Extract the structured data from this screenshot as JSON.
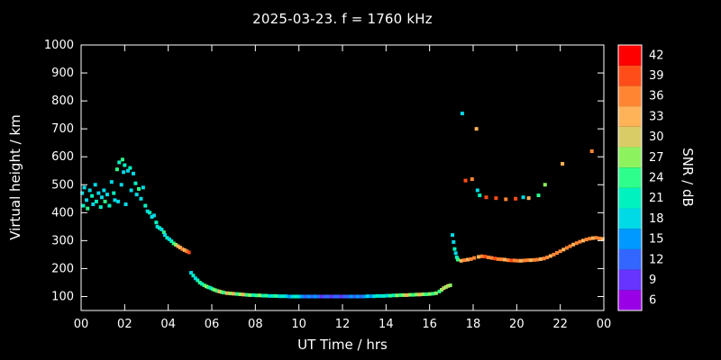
{
  "colors": {
    "background": "#000000",
    "frame": "#ffffff",
    "text": "#ffffff"
  },
  "chart_data": {
    "type": "scatter",
    "title": "2025-03-23. f = 1760 kHz",
    "xlabel": "UT Time / hrs",
    "ylabel": "Virtual height / km",
    "colorbar_label": "SNR / dB",
    "xlim": [
      0,
      24
    ],
    "ylim": [
      50,
      1000
    ],
    "grid": false,
    "legend": "colorbar-right",
    "x_ticks": [
      {
        "v": 0,
        "label": "00"
      },
      {
        "v": 2,
        "label": "02"
      },
      {
        "v": 4,
        "label": "04"
      },
      {
        "v": 6,
        "label": "06"
      },
      {
        "v": 8,
        "label": "08"
      },
      {
        "v": 10,
        "label": "10"
      },
      {
        "v": 12,
        "label": "12"
      },
      {
        "v": 14,
        "label": "14"
      },
      {
        "v": 16,
        "label": "16"
      },
      {
        "v": 18,
        "label": "18"
      },
      {
        "v": 20,
        "label": "20"
      },
      {
        "v": 22,
        "label": "22"
      },
      {
        "v": 24,
        "label": "00"
      }
    ],
    "y_ticks": [
      100,
      200,
      300,
      400,
      500,
      600,
      700,
      800,
      900,
      1000
    ],
    "colorbar_range": [
      4.5,
      43.5
    ],
    "colorbar_ticks": [
      6,
      9,
      12,
      15,
      18,
      21,
      24,
      27,
      30,
      33,
      36,
      39,
      42
    ],
    "color_stops": [
      {
        "snr": 6,
        "color": "#9900e6"
      },
      {
        "snr": 9,
        "color": "#6633ff"
      },
      {
        "snr": 12,
        "color": "#3366ff"
      },
      {
        "snr": 15,
        "color": "#0099ff"
      },
      {
        "snr": 18,
        "color": "#00d9e6"
      },
      {
        "snr": 21,
        "color": "#00f2bf"
      },
      {
        "snr": 24,
        "color": "#2eff8c"
      },
      {
        "snr": 27,
        "color": "#8cf25e"
      },
      {
        "snr": 30,
        "color": "#d9cc66"
      },
      {
        "snr": 33,
        "color": "#ffb359"
      },
      {
        "snr": 36,
        "color": "#ff8533"
      },
      {
        "snr": 39,
        "color": "#ff4d1a"
      },
      {
        "snr": 42,
        "color": "#ff0000"
      }
    ],
    "points": [
      [
        0.05,
        470,
        18
      ],
      [
        0.1,
        425,
        21
      ],
      [
        0.15,
        490,
        18
      ],
      [
        0.25,
        445,
        18
      ],
      [
        0.3,
        415,
        24
      ],
      [
        0.4,
        480,
        18
      ],
      [
        0.5,
        460,
        21
      ],
      [
        0.55,
        430,
        18
      ],
      [
        0.65,
        500,
        18
      ],
      [
        0.7,
        440,
        21
      ],
      [
        0.8,
        470,
        18
      ],
      [
        0.9,
        420,
        21
      ],
      [
        0.95,
        455,
        18
      ],
      [
        1.05,
        480,
        18
      ],
      [
        1.1,
        440,
        24
      ],
      [
        1.2,
        465,
        18
      ],
      [
        1.3,
        425,
        21
      ],
      [
        1.4,
        510,
        18
      ],
      [
        1.5,
        470,
        21
      ],
      [
        1.55,
        445,
        18
      ],
      [
        1.65,
        555,
        24
      ],
      [
        1.7,
        440,
        18
      ],
      [
        1.75,
        580,
        21
      ],
      [
        1.85,
        500,
        18
      ],
      [
        1.9,
        590,
        24
      ],
      [
        1.95,
        545,
        18
      ],
      [
        2.0,
        570,
        21
      ],
      [
        2.05,
        430,
        18
      ],
      [
        2.15,
        550,
        18
      ],
      [
        2.25,
        560,
        21
      ],
      [
        2.3,
        480,
        18
      ],
      [
        2.4,
        540,
        18
      ],
      [
        2.5,
        505,
        21
      ],
      [
        2.55,
        465,
        18
      ],
      [
        2.65,
        485,
        24
      ],
      [
        2.75,
        450,
        18
      ],
      [
        2.85,
        490,
        18
      ],
      [
        2.95,
        425,
        21
      ],
      [
        3.05,
        405,
        18
      ],
      [
        3.15,
        400,
        21
      ],
      [
        3.25,
        385,
        18
      ],
      [
        3.35,
        390,
        18
      ],
      [
        3.45,
        365,
        21
      ],
      [
        3.5,
        350,
        18
      ],
      [
        3.6,
        345,
        21
      ],
      [
        3.7,
        340,
        18
      ],
      [
        3.8,
        330,
        24
      ],
      [
        3.85,
        320,
        18
      ],
      [
        3.95,
        310,
        21
      ],
      [
        4.05,
        305,
        18
      ],
      [
        4.15,
        298,
        21
      ],
      [
        4.25,
        290,
        24
      ],
      [
        4.35,
        285,
        27
      ],
      [
        4.45,
        280,
        33
      ],
      [
        4.55,
        275,
        33
      ],
      [
        4.65,
        270,
        36
      ],
      [
        4.75,
        266,
        33
      ],
      [
        4.85,
        262,
        36
      ],
      [
        4.95,
        258,
        39
      ],
      [
        5.05,
        185,
        18
      ],
      [
        5.15,
        175,
        21
      ],
      [
        5.25,
        165,
        18
      ],
      [
        5.35,
        158,
        21
      ],
      [
        5.45,
        150,
        24
      ],
      [
        5.55,
        145,
        21
      ],
      [
        5.65,
        140,
        24
      ],
      [
        5.75,
        136,
        27
      ],
      [
        5.85,
        133,
        24
      ],
      [
        5.95,
        130,
        21
      ],
      [
        6.05,
        126,
        24
      ],
      [
        6.15,
        123,
        27
      ],
      [
        6.25,
        120,
        24
      ],
      [
        6.35,
        118,
        33
      ],
      [
        6.45,
        116,
        27
      ],
      [
        6.55,
        114,
        24
      ],
      [
        6.7,
        112,
        33
      ],
      [
        6.85,
        111,
        27
      ],
      [
        7.0,
        110,
        33
      ],
      [
        7.15,
        109,
        24
      ],
      [
        7.3,
        108,
        27
      ],
      [
        7.45,
        107,
        33
      ],
      [
        7.6,
        106,
        24
      ],
      [
        7.75,
        105,
        27
      ],
      [
        7.9,
        105,
        21
      ],
      [
        8.05,
        104,
        24
      ],
      [
        8.2,
        104,
        27
      ],
      [
        8.35,
        103,
        21
      ],
      [
        8.5,
        103,
        24
      ],
      [
        8.65,
        102,
        18
      ],
      [
        8.8,
        102,
        21
      ],
      [
        8.95,
        102,
        24
      ],
      [
        9.1,
        101,
        18
      ],
      [
        9.25,
        101,
        21
      ],
      [
        9.4,
        101,
        18
      ],
      [
        9.55,
        100,
        15
      ],
      [
        9.7,
        100,
        18
      ],
      [
        9.85,
        100,
        21
      ],
      [
        10.0,
        100,
        18
      ],
      [
        10.15,
        100,
        15
      ],
      [
        10.3,
        100,
        12
      ],
      [
        10.45,
        100,
        15
      ],
      [
        10.6,
        100,
        12
      ],
      [
        10.75,
        100,
        15
      ],
      [
        10.9,
        100,
        12
      ],
      [
        11.05,
        100,
        9
      ],
      [
        11.2,
        100,
        12
      ],
      [
        11.35,
        100,
        12
      ],
      [
        11.5,
        100,
        9
      ],
      [
        11.65,
        100,
        12
      ],
      [
        11.8,
        100,
        12
      ],
      [
        11.95,
        100,
        9
      ],
      [
        12.1,
        100,
        12
      ],
      [
        12.25,
        100,
        12
      ],
      [
        12.4,
        100,
        15
      ],
      [
        12.55,
        100,
        12
      ],
      [
        12.7,
        100,
        15
      ],
      [
        12.85,
        100,
        12
      ],
      [
        13.0,
        100,
        15
      ],
      [
        13.15,
        101,
        18
      ],
      [
        13.3,
        101,
        15
      ],
      [
        13.45,
        101,
        18
      ],
      [
        13.6,
        102,
        21
      ],
      [
        13.75,
        102,
        18
      ],
      [
        13.9,
        102,
        21
      ],
      [
        14.05,
        103,
        18
      ],
      [
        14.2,
        103,
        24
      ],
      [
        14.35,
        104,
        21
      ],
      [
        14.5,
        104,
        27
      ],
      [
        14.65,
        105,
        24
      ],
      [
        14.8,
        105,
        27
      ],
      [
        14.95,
        105,
        33
      ],
      [
        15.1,
        106,
        27
      ],
      [
        15.25,
        106,
        24
      ],
      [
        15.4,
        107,
        27
      ],
      [
        15.55,
        107,
        33
      ],
      [
        15.7,
        108,
        27
      ],
      [
        15.85,
        108,
        24
      ],
      [
        16.0,
        109,
        27
      ],
      [
        16.15,
        110,
        24
      ],
      [
        16.3,
        112,
        27
      ],
      [
        16.45,
        118,
        24
      ],
      [
        16.55,
        124,
        27
      ],
      [
        16.65,
        130,
        30
      ],
      [
        16.75,
        134,
        27
      ],
      [
        16.85,
        138,
        30
      ],
      [
        16.95,
        140,
        27
      ],
      [
        17.05,
        320,
        18
      ],
      [
        17.1,
        295,
        18
      ],
      [
        17.15,
        270,
        21
      ],
      [
        17.2,
        255,
        18
      ],
      [
        17.25,
        240,
        21
      ],
      [
        17.3,
        232,
        24
      ],
      [
        17.5,
        755,
        18
      ],
      [
        17.65,
        515,
        39
      ],
      [
        17.95,
        520,
        36
      ],
      [
        18.15,
        700,
        33
      ],
      [
        18.2,
        480,
        18
      ],
      [
        18.3,
        462,
        21
      ],
      [
        17.45,
        228,
        33
      ],
      [
        17.6,
        230,
        36
      ],
      [
        17.75,
        232,
        33
      ],
      [
        17.9,
        234,
        36
      ],
      [
        18.05,
        238,
        36
      ],
      [
        18.25,
        242,
        33
      ],
      [
        18.4,
        244,
        36
      ],
      [
        18.55,
        243,
        39
      ],
      [
        18.7,
        240,
        36
      ],
      [
        18.85,
        238,
        36
      ],
      [
        19.0,
        236,
        39
      ],
      [
        19.15,
        234,
        36
      ],
      [
        19.3,
        233,
        36
      ],
      [
        19.45,
        232,
        33
      ],
      [
        19.6,
        230,
        36
      ],
      [
        19.75,
        229,
        39
      ],
      [
        19.9,
        229,
        36
      ],
      [
        20.05,
        228,
        36
      ],
      [
        20.2,
        228,
        33
      ],
      [
        20.35,
        229,
        36
      ],
      [
        20.5,
        230,
        36
      ],
      [
        20.65,
        230,
        33
      ],
      [
        20.8,
        231,
        36
      ],
      [
        20.95,
        232,
        36
      ],
      [
        21.1,
        234,
        33
      ],
      [
        21.25,
        236,
        36
      ],
      [
        21.4,
        240,
        36
      ],
      [
        21.55,
        245,
        33
      ],
      [
        21.7,
        250,
        36
      ],
      [
        21.85,
        256,
        36
      ],
      [
        22.0,
        262,
        36
      ],
      [
        22.15,
        268,
        33
      ],
      [
        22.3,
        274,
        36
      ],
      [
        22.45,
        280,
        36
      ],
      [
        22.6,
        286,
        33
      ],
      [
        22.75,
        291,
        36
      ],
      [
        22.9,
        296,
        36
      ],
      [
        23.05,
        300,
        33
      ],
      [
        23.2,
        304,
        36
      ],
      [
        23.35,
        307,
        36
      ],
      [
        23.5,
        309,
        33
      ],
      [
        23.65,
        310,
        36
      ],
      [
        23.8,
        308,
        36
      ],
      [
        23.95,
        306,
        33
      ],
      [
        18.6,
        455,
        39
      ],
      [
        19.05,
        452,
        39
      ],
      [
        19.5,
        448,
        36
      ],
      [
        19.95,
        450,
        39
      ],
      [
        20.3,
        455,
        18
      ],
      [
        20.55,
        452,
        33
      ],
      [
        21.0,
        462,
        24
      ],
      [
        21.3,
        500,
        27
      ],
      [
        22.1,
        575,
        33
      ],
      [
        23.45,
        620,
        36
      ]
    ]
  }
}
